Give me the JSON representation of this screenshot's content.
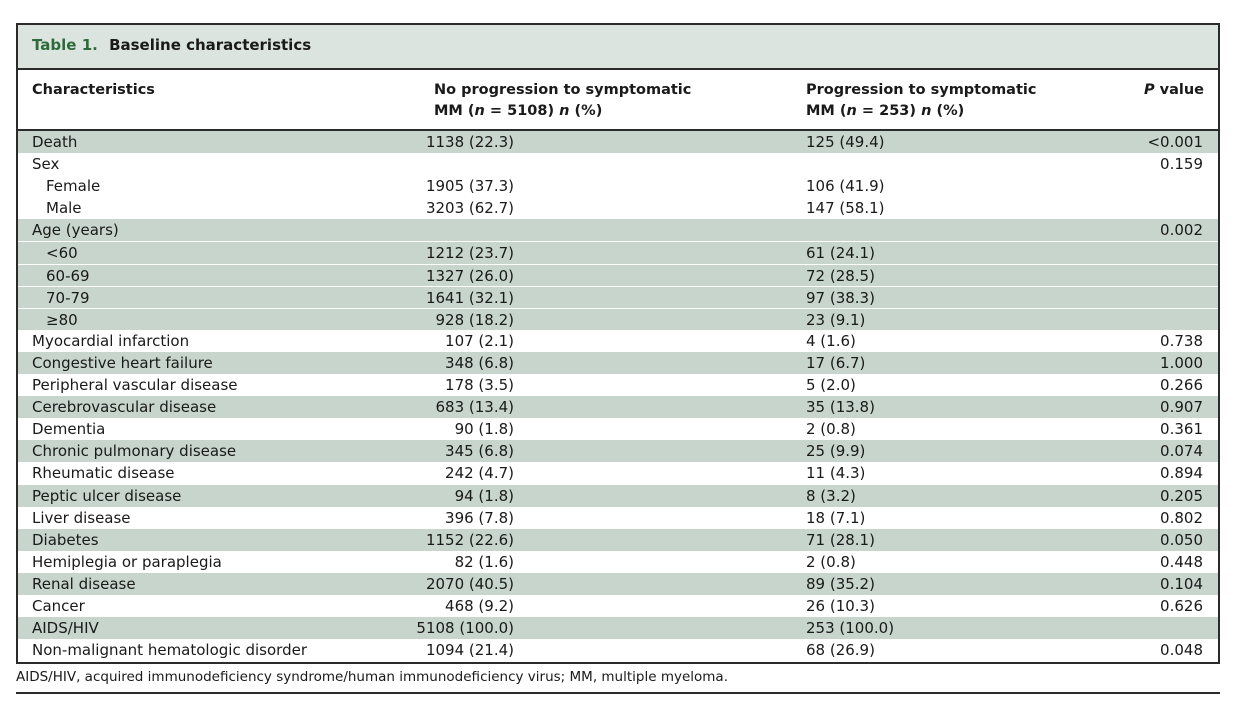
{
  "caption": {
    "label": "Table 1.",
    "title": "Baseline characteristics"
  },
  "headers": {
    "characteristics": "Characteristics",
    "no_progression_line1": "No progression to symptomatic",
    "no_progression_line2_pre": "MM (",
    "no_progression_n": "n",
    "no_progression_line2_mid": " = 5108) ",
    "no_progression_n2": "n",
    "no_progression_line2_post": " (%)",
    "progression_line1": "Progression to symptomatic",
    "progression_line2_pre": "MM (",
    "progression_n": "n",
    "progression_line2_mid": " = 253) ",
    "progression_n2": "n",
    "progression_line2_post": " (%)",
    "p_value_italic": "P",
    "p_value_rest": " value"
  },
  "rows": [
    {
      "label": "Death",
      "no_progression": "1138 (22.3)",
      "progression": "125 (49.4)",
      "p_value": "<0.001",
      "indent": false,
      "shaded": true
    },
    {
      "label": "Sex",
      "no_progression": "",
      "progression": "",
      "p_value": "0.159",
      "indent": false,
      "shaded": false
    },
    {
      "label": "Female",
      "no_progression": "1905 (37.3)",
      "progression": "106 (41.9)",
      "p_value": "",
      "indent": true,
      "shaded": false
    },
    {
      "label": "Male",
      "no_progression": "3203 (62.7)",
      "progression": "147 (58.1)",
      "p_value": "",
      "indent": true,
      "shaded": false
    },
    {
      "label": "Age (years)",
      "no_progression": "",
      "progression": "",
      "p_value": "0.002",
      "indent": false,
      "shaded": true
    },
    {
      "label": "<60",
      "no_progression": "1212 (23.7)",
      "progression": "61 (24.1)",
      "p_value": "",
      "indent": true,
      "shaded": true
    },
    {
      "label": "60-69",
      "no_progression": "1327 (26.0)",
      "progression": "72 (28.5)",
      "p_value": "",
      "indent": true,
      "shaded": true
    },
    {
      "label": "70-79",
      "no_progression": "1641 (32.1)",
      "progression": "97 (38.3)",
      "p_value": "",
      "indent": true,
      "shaded": true
    },
    {
      "label": "≥80",
      "no_progression": "928 (18.2)",
      "progression": "23 (9.1)",
      "p_value": "",
      "indent": true,
      "shaded": true
    },
    {
      "label": "Myocardial infarction",
      "no_progression": "107 (2.1)",
      "progression": "4 (1.6)",
      "p_value": "0.738",
      "indent": false,
      "shaded": false
    },
    {
      "label": "Congestive heart failure",
      "no_progression": "348 (6.8)",
      "progression": "17 (6.7)",
      "p_value": "1.000",
      "indent": false,
      "shaded": true
    },
    {
      "label": "Peripheral vascular disease",
      "no_progression": "178 (3.5)",
      "progression": "5 (2.0)",
      "p_value": "0.266",
      "indent": false,
      "shaded": false
    },
    {
      "label": "Cerebrovascular disease",
      "no_progression": "683 (13.4)",
      "progression": "35 (13.8)",
      "p_value": "0.907",
      "indent": false,
      "shaded": true
    },
    {
      "label": "Dementia",
      "no_progression": "90 (1.8)",
      "progression": "2 (0.8)",
      "p_value": "0.361",
      "indent": false,
      "shaded": false
    },
    {
      "label": "Chronic pulmonary disease",
      "no_progression": "345 (6.8)",
      "progression": "25 (9.9)",
      "p_value": "0.074",
      "indent": false,
      "shaded": true
    },
    {
      "label": "Rheumatic disease",
      "no_progression": "242 (4.7)",
      "progression": "11 (4.3)",
      "p_value": "0.894",
      "indent": false,
      "shaded": false
    },
    {
      "label": "Peptic ulcer disease",
      "no_progression": "94 (1.8)",
      "progression": "8 (3.2)",
      "p_value": "0.205",
      "indent": false,
      "shaded": true
    },
    {
      "label": "Liver disease",
      "no_progression": "396 (7.8)",
      "progression": "18 (7.1)",
      "p_value": "0.802",
      "indent": false,
      "shaded": false
    },
    {
      "label": "Diabetes",
      "no_progression": "1152 (22.6)",
      "progression": "71 (28.1)",
      "p_value": "0.050",
      "indent": false,
      "shaded": true
    },
    {
      "label": "Hemiplegia or paraplegia",
      "no_progression": "82 (1.6)",
      "progression": "2 (0.8)",
      "p_value": "0.448",
      "indent": false,
      "shaded": false
    },
    {
      "label": "Renal disease",
      "no_progression": "2070 (40.5)",
      "progression": "89 (35.2)",
      "p_value": "0.104",
      "indent": false,
      "shaded": true
    },
    {
      "label": "Cancer",
      "no_progression": "468 (9.2)",
      "progression": "26 (10.3)",
      "p_value": "0.626",
      "indent": false,
      "shaded": false
    },
    {
      "label": "AIDS/HIV",
      "no_progression": "5108 (100.0)",
      "progression": "253 (100.0)",
      "p_value": "",
      "indent": false,
      "shaded": true
    },
    {
      "label": "Non-malignant hematologic disorder",
      "no_progression": "1094 (21.4)",
      "progression": "68 (26.9)",
      "p_value": "0.048",
      "indent": false,
      "shaded": false
    }
  ],
  "footnote": "AIDS/HIV, acquired immunodeficiency syndrome/human immunodeficiency virus; MM, multiple myeloma.",
  "colors": {
    "caption_bg": "#dbe4de",
    "caption_label": "#2e6b3a",
    "row_shade": "#c7d5cc",
    "rule": "#2b2b2b"
  }
}
